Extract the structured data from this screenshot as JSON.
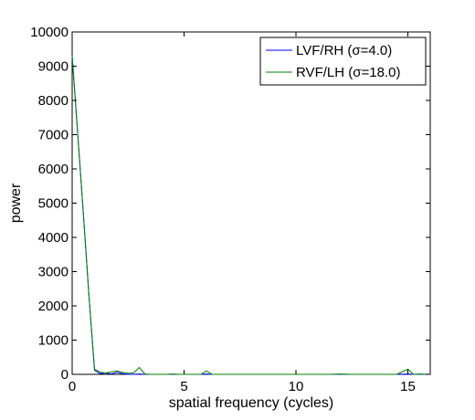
{
  "chart_data": {
    "type": "line",
    "title": "",
    "xlabel": "spatial frequency (cycles)",
    "ylabel": "power",
    "xlim": [
      0,
      16
    ],
    "ylim": [
      0,
      10000
    ],
    "xticks": [
      0,
      5,
      10,
      15
    ],
    "yticks": [
      0,
      1000,
      2000,
      3000,
      4000,
      5000,
      6000,
      7000,
      8000,
      9000,
      10000
    ],
    "grid": false,
    "legend_position": "top-right",
    "series": [
      {
        "name": "LVF/RH (σ=4.0)",
        "color": "#0000ff",
        "x": [
          0,
          0.25,
          0.5,
          0.75,
          1,
          1.25,
          1.5,
          1.75,
          2,
          2.25,
          2.5,
          2.75,
          3,
          3.25,
          3.5,
          3.75,
          4,
          4.25,
          4.5,
          4.75,
          5,
          5.25,
          5.5,
          5.75,
          6,
          6.25,
          6.5,
          6.75,
          7,
          7.5,
          8,
          8.5,
          9,
          9.5,
          10,
          10.5,
          11,
          11.5,
          12,
          12.5,
          13,
          13.5,
          14,
          14.5,
          15,
          15.25,
          15.5,
          16
        ],
        "y": [
          9300,
          7000,
          4700,
          2300,
          120,
          20,
          40,
          10,
          60,
          20,
          0,
          0,
          10,
          0,
          0,
          0,
          0,
          0,
          0,
          0,
          0,
          0,
          0,
          0,
          10,
          0,
          0,
          0,
          0,
          0,
          0,
          0,
          0,
          0,
          0,
          0,
          0,
          0,
          0,
          0,
          0,
          0,
          0,
          0,
          10,
          0,
          0,
          0
        ]
      },
      {
        "name": "RVF/LH (σ=18.0)",
        "color": "#008000",
        "x": [
          0,
          0.25,
          0.5,
          0.75,
          1,
          1.25,
          1.5,
          1.75,
          2,
          2.25,
          2.5,
          2.75,
          3,
          3.25,
          3.5,
          3.75,
          4,
          4.25,
          4.5,
          4.75,
          5,
          5.25,
          5.5,
          5.75,
          6,
          6.25,
          6.5,
          6.75,
          7,
          7.5,
          8,
          8.5,
          9,
          9.5,
          10,
          10.5,
          11,
          11.5,
          12,
          12.5,
          13,
          13.5,
          14,
          14.5,
          15,
          15.25,
          15.5,
          16
        ],
        "y": [
          9300,
          7000,
          4700,
          2300,
          150,
          60,
          40,
          70,
          100,
          60,
          30,
          40,
          200,
          10,
          0,
          0,
          0,
          0,
          10,
          0,
          0,
          0,
          0,
          0,
          100,
          0,
          0,
          0,
          0,
          0,
          0,
          0,
          0,
          0,
          0,
          0,
          0,
          0,
          10,
          0,
          0,
          0,
          0,
          0,
          150,
          0,
          10,
          0
        ]
      }
    ]
  }
}
